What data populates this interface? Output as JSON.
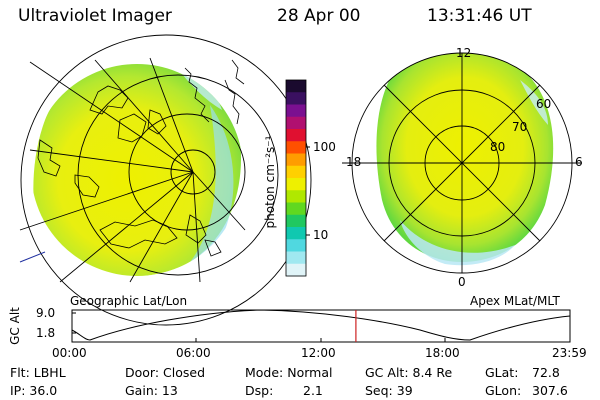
{
  "header": {
    "instrument": "Ultraviolet Imager",
    "date": "28 Apr 00",
    "time": "13:31:46 UT"
  },
  "left_panel": {
    "label": "Geographic Lat/Lon"
  },
  "right_panel": {
    "label": "Apex MLat/MLT",
    "mlt_labels": [
      "12",
      "6",
      "0",
      "18"
    ],
    "mlat_labels": [
      "60",
      "70",
      "80"
    ]
  },
  "colorbar": {
    "unit_label": "photon cm⁻²s⁻¹",
    "tick_labels": [
      "100",
      "10"
    ],
    "colors": [
      "#1a0a2e",
      "#3a1060",
      "#7a1090",
      "#b01070",
      "#e01030",
      "#ff5000",
      "#ff9c00",
      "#ffd000",
      "#eef000",
      "#b0e800",
      "#60d820",
      "#20c860",
      "#10c8b0",
      "#50d8e0",
      "#a0e8f0",
      "#e0f4f8"
    ]
  },
  "altitude_strip": {
    "axis_label": "GC Alt",
    "y_ticks": [
      "9.0",
      "1.8"
    ],
    "x_ticks": [
      "00:00",
      "06:00",
      "12:00",
      "18:00",
      "23:59"
    ],
    "current_marker_fraction": 0.57,
    "marker_color": "#cc2222"
  },
  "info": {
    "flt": "Flt: LBHL",
    "ip": "IP: 36.0",
    "door": "Door: Closed",
    "gain": "Gain: 13",
    "mode": "Mode: Normal",
    "dsp_label": "Dsp:",
    "dsp_value": "2.1",
    "gc_alt": "GC Alt: 8.4 Re",
    "seq": "Seq: 39",
    "glat_label": "GLat:",
    "glat_value": "72.8",
    "glon_label": "GLon:",
    "glon_value": "307.6"
  }
}
